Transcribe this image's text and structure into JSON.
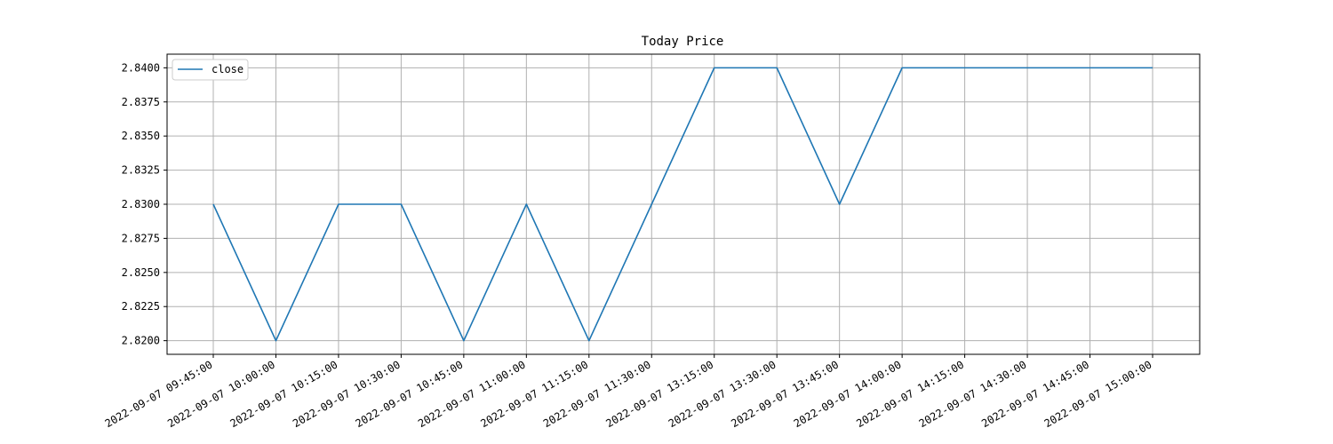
{
  "chart_data": {
    "type": "line",
    "title": "Today Price",
    "xlabel": "",
    "ylabel": "",
    "categories": [
      "2022-09-07 09:45:00",
      "2022-09-07 10:00:00",
      "2022-09-07 10:15:00",
      "2022-09-07 10:30:00",
      "2022-09-07 10:45:00",
      "2022-09-07 11:00:00",
      "2022-09-07 11:15:00",
      "2022-09-07 11:30:00",
      "2022-09-07 13:15:00",
      "2022-09-07 13:30:00",
      "2022-09-07 13:45:00",
      "2022-09-07 14:00:00",
      "2022-09-07 14:15:00",
      "2022-09-07 14:30:00",
      "2022-09-07 14:45:00",
      "2022-09-07 15:00:00"
    ],
    "series": [
      {
        "name": "close",
        "color": "#1f77b4",
        "values": [
          2.83,
          2.82,
          2.83,
          2.83,
          2.82,
          2.83,
          2.82,
          2.83,
          2.84,
          2.84,
          2.83,
          2.84,
          2.84,
          2.84,
          2.84,
          2.84
        ]
      }
    ],
    "ylim": [
      2.819,
      2.841
    ],
    "yticks": [
      "2.8200",
      "2.8225",
      "2.8250",
      "2.8275",
      "2.8300",
      "2.8325",
      "2.8350",
      "2.8375",
      "2.8400"
    ],
    "grid": true,
    "legend_position": "top-left"
  }
}
